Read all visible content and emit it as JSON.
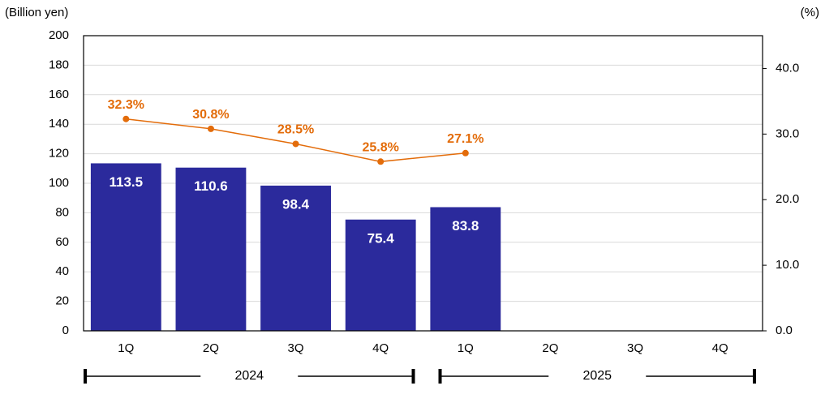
{
  "chart_data": {
    "type": "bar-line",
    "y_label": "(Billion yen)",
    "y2_label": "(%)",
    "categories": [
      "1Q",
      "2Q",
      "3Q",
      "4Q",
      "1Q",
      "2Q",
      "3Q",
      "4Q"
    ],
    "groups": [
      {
        "name": "2024",
        "size": 4
      },
      {
        "name": "2025",
        "size": 4
      }
    ],
    "series": [
      {
        "type": "bar",
        "color": "#2b2a9c",
        "values": [
          113.5,
          110.6,
          98.4,
          75.4,
          83.8,
          null,
          null,
          null
        ]
      },
      {
        "type": "line",
        "axis": "y2",
        "color": "#e36c0a",
        "values": [
          32.3,
          30.8,
          28.5,
          25.8,
          27.1,
          null,
          null,
          null
        ],
        "value_labels": [
          "32.3%",
          "30.8%",
          "28.5%",
          "25.8%",
          "27.1%",
          null,
          null,
          null
        ]
      }
    ],
    "ylim": [
      0,
      200
    ],
    "yticks": [
      0,
      20,
      40,
      60,
      80,
      100,
      120,
      140,
      160,
      180,
      200
    ],
    "y2lim": [
      0,
      45
    ],
    "y2ticks": [
      {
        "value": 0,
        "label": "0.0"
      },
      {
        "value": 10,
        "label": "10.0"
      },
      {
        "value": 20,
        "label": "20.0"
      },
      {
        "value": 30,
        "label": "30.0"
      },
      {
        "value": 40,
        "label": "40.0"
      }
    ],
    "grid": true
  }
}
